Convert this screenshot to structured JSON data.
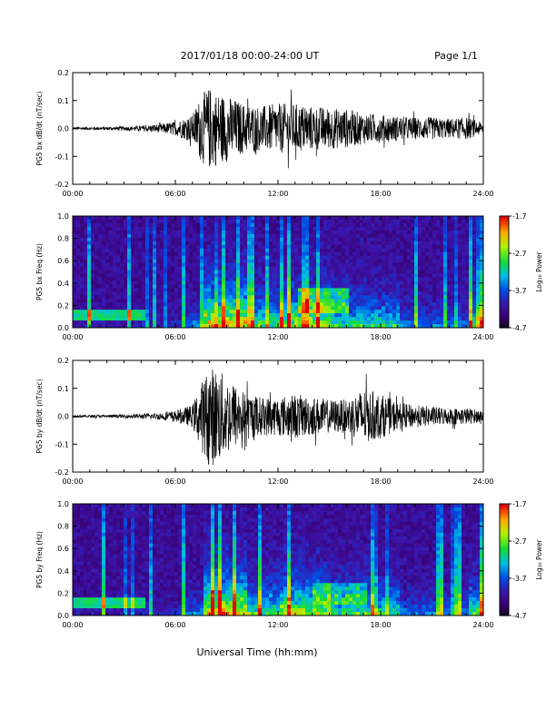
{
  "header": {
    "title": "2017/01/18  00:00-24:00 UT",
    "page": "Page 1/1"
  },
  "footer": {
    "xlabel": "Universal Time (hh:mm)"
  },
  "colorbar": {
    "label": "Log₁₀ Power",
    "ticks": [
      "-1.7",
      "-2.7",
      "-3.7",
      "-4.7"
    ]
  },
  "chart_data": [
    {
      "type": "line",
      "ylabel": "PG5 bx dB/dt (nT/sec)",
      "xlabel": "",
      "x_ticks": [
        "00:00",
        "06:00",
        "12:00",
        "18:00",
        "24:00"
      ],
      "y_ticks": [
        "0.2",
        "0.1",
        "0.0",
        "-0.1",
        "-0.2"
      ],
      "xlim": [
        0,
        24
      ],
      "ylim": [
        -0.2,
        0.2
      ],
      "envelope": {
        "x_hours": [
          0,
          2,
          3.5,
          5,
          6,
          7,
          7.5,
          8,
          8.5,
          9,
          10,
          11,
          12,
          13,
          14,
          15,
          16,
          17,
          18,
          19,
          20,
          21,
          22,
          23,
          24
        ],
        "amplitude": [
          0.005,
          0.006,
          0.008,
          0.015,
          0.025,
          0.05,
          0.12,
          0.15,
          0.13,
          0.12,
          0.09,
          0.08,
          0.09,
          0.09,
          0.08,
          0.075,
          0.07,
          0.055,
          0.05,
          0.045,
          0.04,
          0.04,
          0.035,
          0.04,
          0.02
        ]
      }
    },
    {
      "type": "heatmap",
      "ylabel": "PG5 bx Freq (Hz)",
      "x_ticks": [
        "00:00",
        "06:00",
        "12:00",
        "18:00",
        "24:00"
      ],
      "y_ticks": [
        "1.0",
        "0.8",
        "0.6",
        "0.4",
        "0.2",
        "0.0"
      ],
      "xlim": [
        0,
        24
      ],
      "ylim": [
        0,
        1.0
      ],
      "color_range": [
        -4.7,
        -1.7
      ]
    },
    {
      "type": "line",
      "ylabel": "PG5 by dB/dt (nT/sec)",
      "xlabel": "",
      "x_ticks": [
        "00:00",
        "06:00",
        "12:00",
        "18:00",
        "24:00"
      ],
      "y_ticks": [
        "0.2",
        "0.1",
        "0.0",
        "-0.1",
        "-0.2"
      ],
      "xlim": [
        0,
        24
      ],
      "ylim": [
        -0.2,
        0.2
      ],
      "envelope": {
        "x_hours": [
          0,
          2,
          3.5,
          5,
          6,
          7,
          7.5,
          8,
          8.5,
          9,
          10,
          11,
          12,
          13,
          14,
          15,
          16,
          17,
          18,
          19,
          20,
          21,
          22,
          23,
          24
        ],
        "amplitude": [
          0.004,
          0.005,
          0.007,
          0.012,
          0.02,
          0.04,
          0.12,
          0.18,
          0.17,
          0.14,
          0.09,
          0.07,
          0.07,
          0.08,
          0.07,
          0.06,
          0.06,
          0.1,
          0.08,
          0.05,
          0.04,
          0.035,
          0.03,
          0.03,
          0.02
        ]
      }
    },
    {
      "type": "heatmap",
      "ylabel": "PG5 by Freq (Hz)",
      "x_ticks": [
        "00:00",
        "06:00",
        "12:00",
        "18:00",
        "24:00"
      ],
      "y_ticks": [
        "1.0",
        "0.8",
        "0.6",
        "0.4",
        "0.2",
        "0.0"
      ],
      "xlim": [
        0,
        24
      ],
      "ylim": [
        0,
        1.0
      ],
      "color_range": [
        -4.7,
        -1.7
      ]
    }
  ]
}
